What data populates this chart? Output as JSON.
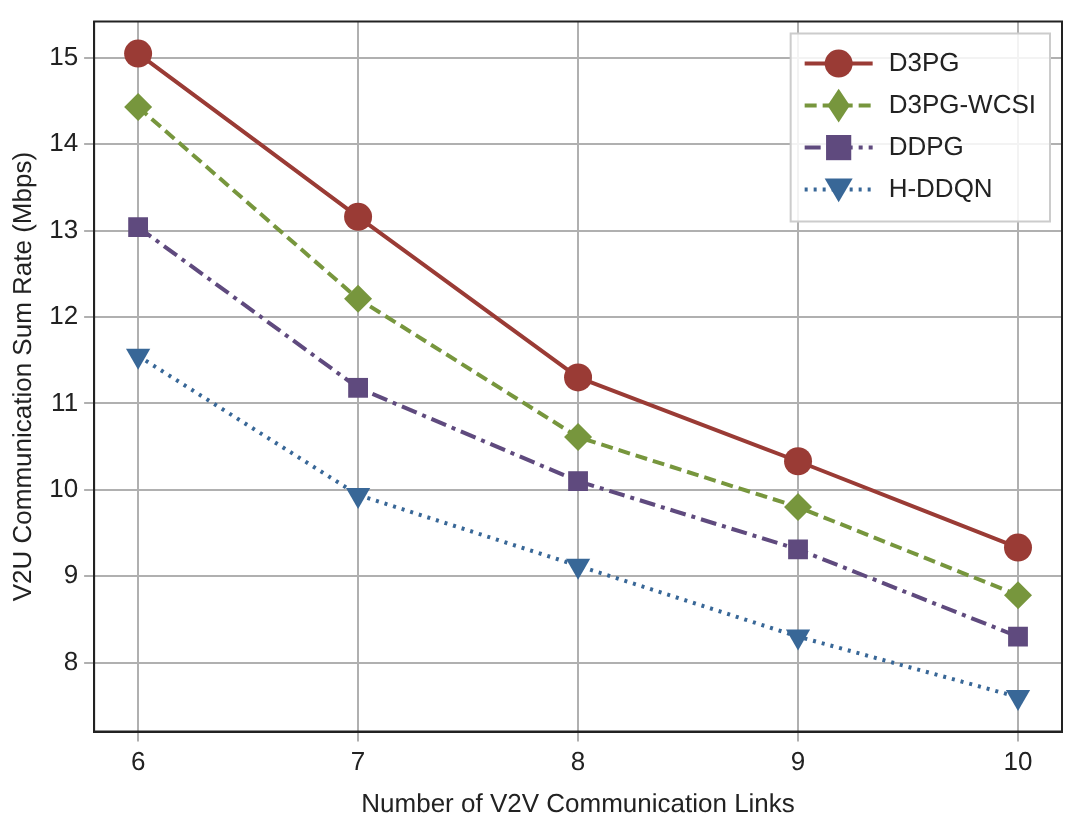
{
  "chart_data": {
    "type": "line",
    "xlabel": "Number of V2V Communication Links",
    "ylabel": "V2U Communication Sum Rate (Mbps)",
    "x": [
      6,
      7,
      8,
      9,
      10
    ],
    "series": [
      {
        "name": "D3PG",
        "color": "#9a3b35",
        "marker": "circle",
        "line_style": "solid",
        "values": [
          15.05,
          13.16,
          11.3,
          10.33,
          9.33
        ]
      },
      {
        "name": "D3PG-WCSI",
        "color": "#77963d",
        "marker": "diamond",
        "line_style": "dashed",
        "values": [
          14.43,
          12.21,
          10.61,
          9.8,
          8.78
        ]
      },
      {
        "name": "DDPG",
        "color": "#5f4a7e",
        "marker": "square",
        "line_style": "dashdot",
        "values": [
          13.04,
          11.18,
          10.1,
          9.31,
          8.3
        ]
      },
      {
        "name": "H-DDQN",
        "color": "#386797",
        "marker": "triangle",
        "line_style": "dotted",
        "values": [
          11.55,
          9.94,
          9.12,
          8.3,
          7.6
        ]
      }
    ],
    "xlim": [
      5.8,
      10.2
    ],
    "xticks": [
      6,
      7,
      8,
      9,
      10
    ],
    "ylim": [
      7.2,
      15.42
    ],
    "yticks": [
      8,
      9,
      10,
      11,
      12,
      13,
      14,
      15
    ],
    "grid": true,
    "legend": "top right"
  }
}
